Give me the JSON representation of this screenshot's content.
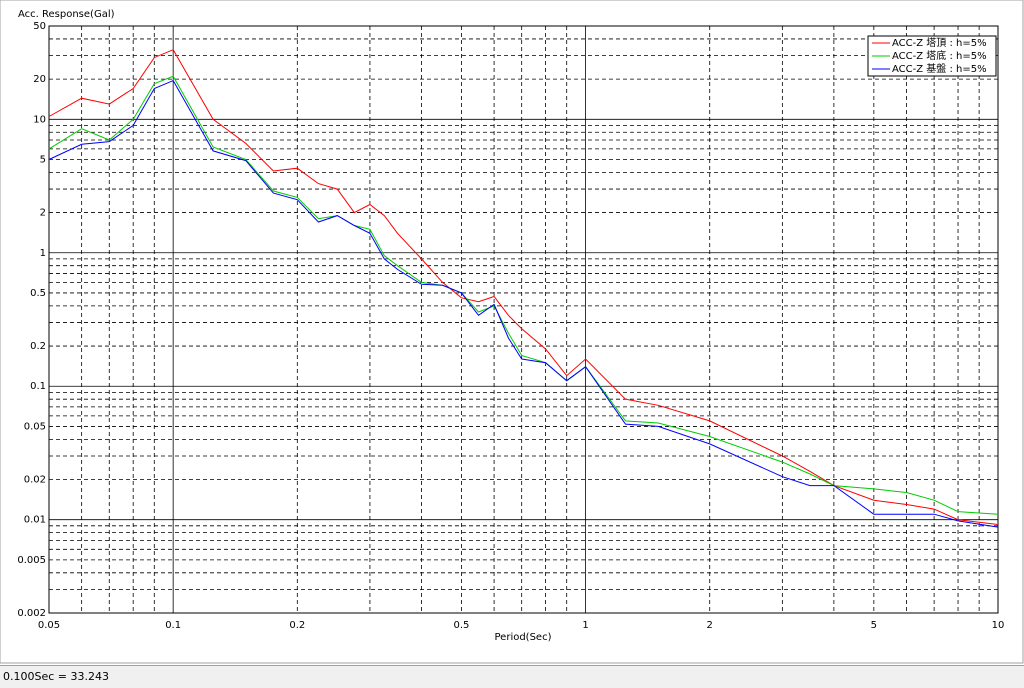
{
  "chart_data": {
    "type": "line",
    "title": "Acc. Response(Gal)",
    "x_label": "Period(Sec)",
    "x": [
      0.05,
      0.06,
      0.07,
      0.08,
      0.09,
      0.1,
      0.125,
      0.15,
      0.175,
      0.2,
      0.225,
      0.25,
      0.275,
      0.3,
      0.325,
      0.35,
      0.4,
      0.45,
      0.5,
      0.55,
      0.6,
      0.65,
      0.7,
      0.8,
      0.9,
      1,
      1.25,
      1.5,
      2,
      3,
      3.5,
      4,
      5,
      6,
      7,
      8,
      10
    ],
    "series": [
      {
        "name": "ACC-Z 塔頂 : h=5%",
        "color": "#ff0000",
        "values": [
          10.5,
          14.4,
          13,
          17,
          29,
          33.243,
          10,
          6.6,
          4.1,
          4.3,
          3.3,
          3.0,
          2.0,
          2.3,
          1.9,
          1.4,
          0.9,
          0.6,
          0.46,
          0.43,
          0.47,
          0.34,
          0.27,
          0.19,
          0.12,
          0.16,
          0.08,
          0.072,
          0.055,
          0.03,
          0.023,
          0.018,
          0.014,
          0.013,
          0.012,
          0.01,
          0.0092
        ]
      },
      {
        "name": "ACC-Z 塔底 : h=5%",
        "color": "#00cc00",
        "values": [
          6,
          8.5,
          7,
          10,
          18.5,
          21,
          6.2,
          5,
          2.9,
          2.6,
          1.8,
          1.9,
          1.6,
          1.5,
          0.95,
          0.8,
          0.6,
          0.57,
          0.5,
          0.36,
          0.4,
          0.25,
          0.17,
          0.15,
          0.11,
          0.14,
          0.055,
          0.053,
          0.042,
          0.027,
          0.022,
          0.018,
          0.017,
          0.016,
          0.014,
          0.0115,
          0.011
        ]
      },
      {
        "name": "ACC-Z 基盤 : h=5%",
        "color": "#0000ff",
        "values": [
          5,
          6.5,
          6.8,
          9,
          17,
          19.5,
          5.8,
          4.9,
          2.8,
          2.5,
          1.7,
          1.9,
          1.6,
          1.4,
          0.9,
          0.75,
          0.58,
          0.57,
          0.5,
          0.34,
          0.41,
          0.23,
          0.16,
          0.15,
          0.11,
          0.14,
          0.052,
          0.05,
          0.037,
          0.021,
          0.018,
          0.018,
          0.011,
          0.011,
          0.011,
          0.0098,
          0.0088
        ]
      }
    ],
    "xlim": [
      0.05,
      10
    ],
    "ylim": [
      0.002,
      50
    ],
    "xticks": [
      0.05,
      0.1,
      0.2,
      0.5,
      1,
      2,
      5,
      10
    ],
    "yticks": [
      0.002,
      0.005,
      0.01,
      0.02,
      0.05,
      0.1,
      0.2,
      0.5,
      1,
      2,
      5,
      10,
      20,
      50
    ],
    "x_log": true,
    "y_log": true,
    "grid": true,
    "minor_grid": true,
    "legend": "upper right"
  },
  "status_bar": "0.100Sec = 33.243"
}
